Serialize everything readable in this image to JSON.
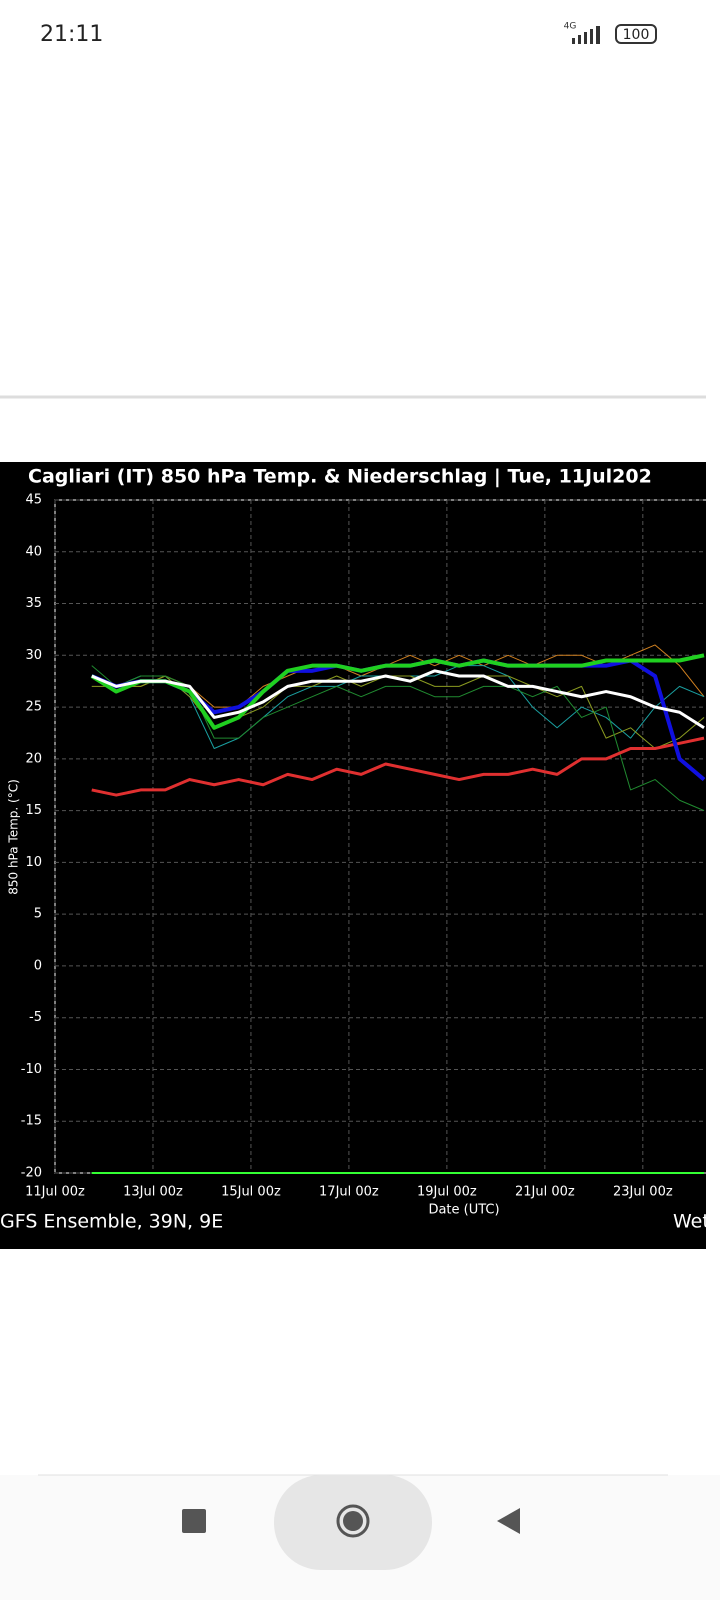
{
  "status_bar": {
    "time": "21:11",
    "network": "4G",
    "battery": "100"
  },
  "chart_data": {
    "type": "line",
    "title": "Cagliari  (IT)  850 hPa Temp. & Niederschlag | Tue, 11Jul202",
    "ylabel": "850 hPa Temp. (°C)",
    "xlabel": "Date (UTC)",
    "footer_left": "GFS Ensemble, 39N, 9E",
    "footer_right": "Wet",
    "x": [
      0.75,
      1.25,
      1.75,
      2.25,
      2.75,
      3.25,
      3.75,
      4.25,
      4.75,
      5.25,
      5.75,
      6.25,
      6.75,
      7.25,
      7.75,
      8.25,
      8.75,
      9.25,
      9.75,
      10.25,
      10.75,
      11.25,
      11.75,
      12.25,
      12.75,
      13.25
    ],
    "xlim": [
      0,
      13.29
    ],
    "xticks": [
      {
        "value": 0,
        "label": "11Jul 00z"
      },
      {
        "value": 2,
        "label": "13Jul 00z"
      },
      {
        "value": 4,
        "label": "15Jul 00z"
      },
      {
        "value": 6,
        "label": "17Jul 00z"
      },
      {
        "value": 8,
        "label": "19Jul 00z"
      },
      {
        "value": 10,
        "label": "21Jul 00z"
      },
      {
        "value": 12,
        "label": "23Jul 00z"
      }
    ],
    "ylim": [
      -20,
      45
    ],
    "yticks": [
      -20,
      -15,
      -10,
      -5,
      0,
      5,
      10,
      15,
      20,
      25,
      30,
      35,
      40,
      45
    ],
    "grid": true,
    "series": [
      {
        "color": "#d08020",
        "width": 1,
        "values": [
          28,
          27,
          27,
          28,
          27,
          25,
          25,
          27,
          28,
          29,
          29,
          28,
          29,
          30,
          29,
          30,
          29,
          30,
          29,
          30,
          30,
          29,
          30,
          31,
          29,
          26
        ]
      },
      {
        "color": "#1a9fa0",
        "width": 1,
        "values": [
          28,
          27,
          28,
          28,
          26,
          21,
          22,
          24,
          26,
          27,
          27,
          28,
          28,
          28,
          28,
          29,
          29,
          28,
          25,
          23,
          25,
          24,
          22,
          25,
          27,
          26
        ]
      },
      {
        "color": "#8a9a20",
        "width": 1,
        "values": [
          27,
          27,
          27,
          28,
          26,
          23,
          24,
          25,
          27,
          27,
          28,
          27,
          28,
          28,
          27,
          27,
          28,
          28,
          27,
          26,
          27,
          22,
          23,
          21,
          22,
          24
        ]
      },
      {
        "color": "#208a30",
        "width": 1,
        "values": [
          29,
          27,
          28,
          28,
          27,
          22,
          22,
          24,
          25,
          26,
          27,
          26,
          27,
          27,
          26,
          26,
          27,
          27,
          26,
          27,
          24,
          25,
          17,
          18,
          16,
          15
        ]
      },
      {
        "color": "#33ff33",
        "width": 2,
        "values": [
          -20,
          -20,
          -20,
          -20,
          -20,
          -20,
          -20,
          -20,
          -20,
          -20,
          -20,
          -20,
          -20,
          -20,
          -20,
          -20,
          -20,
          -20,
          -20,
          -20,
          -20,
          -20,
          -20,
          -20,
          -20,
          -20
        ]
      },
      {
        "color": "#e03030",
        "width": 3,
        "values": [
          17,
          16.5,
          17,
          17,
          18,
          17.5,
          18,
          17.5,
          18.5,
          18,
          19,
          18.5,
          19.5,
          19,
          18.5,
          18,
          18.5,
          18.5,
          19,
          18.5,
          20,
          20,
          21,
          21,
          21.5,
          22
        ]
      },
      {
        "color": "#1010e0",
        "width": 4,
        "values": [
          28,
          27,
          27.5,
          27.5,
          26.5,
          24.5,
          25,
          26.5,
          28.5,
          28.5,
          29,
          28.5,
          29,
          29,
          29.5,
          29,
          29.5,
          29,
          29,
          29,
          29,
          29,
          29.5,
          28,
          20,
          18
        ]
      },
      {
        "color": "#20d020",
        "width": 4,
        "values": [
          28,
          26.5,
          27.5,
          27.5,
          26.5,
          23,
          24,
          26.5,
          28.5,
          29,
          29,
          28.5,
          29,
          29,
          29.5,
          29,
          29.5,
          29,
          29,
          29,
          29,
          29.5,
          29.5,
          29.5,
          29.5,
          30
        ]
      },
      {
        "color": "#ffffff",
        "width": 3,
        "values": [
          28,
          27,
          27.5,
          27.5,
          27,
          24,
          24.5,
          25.5,
          27,
          27.5,
          27.5,
          27.5,
          28,
          27.5,
          28.5,
          28,
          28,
          27,
          27,
          26.5,
          26,
          26.5,
          26,
          25,
          24.5,
          23
        ]
      }
    ]
  }
}
